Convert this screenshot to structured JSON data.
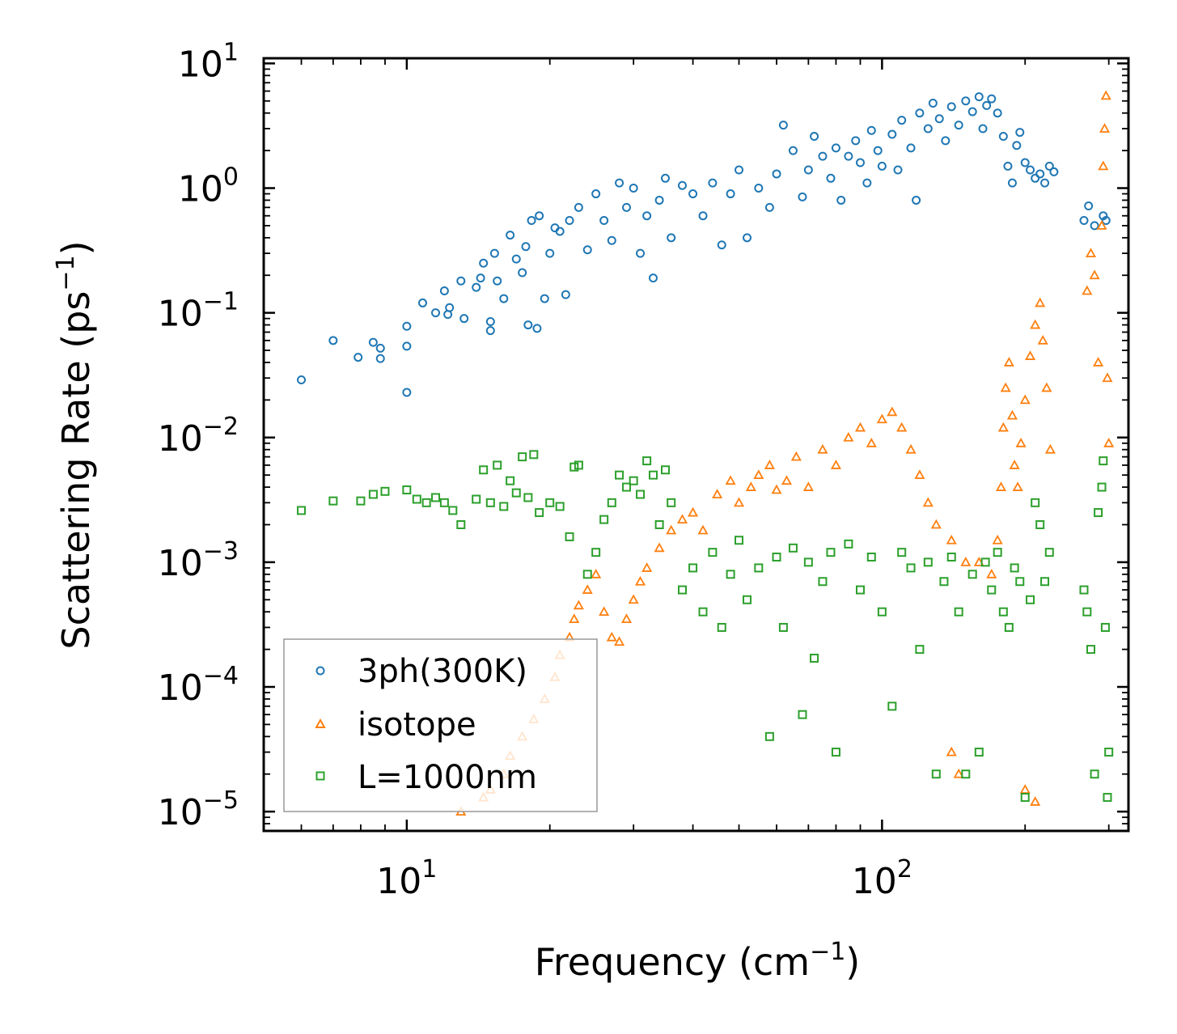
{
  "chart_data": {
    "type": "scatter",
    "xscale": "log",
    "yscale": "log",
    "xlim": [
      5,
      330
    ],
    "ylim": [
      7e-06,
      11
    ],
    "xlabel": "Frequency (cm",
    "xlabel_sup": "−1",
    "xlabel_end": ")",
    "ylabel": "Scattering Rate (ps",
    "ylabel_sup": "−1",
    "ylabel_end": ")",
    "x_ticks": [
      {
        "value": 10,
        "base": "10",
        "exp": "1"
      },
      {
        "value": 100,
        "base": "10",
        "exp": "2"
      }
    ],
    "y_ticks": [
      {
        "value": 10,
        "base": "10",
        "exp": "1"
      },
      {
        "value": 1,
        "base": "10",
        "exp": "0"
      },
      {
        "value": 0.1,
        "base": "10",
        "exp": "−1"
      },
      {
        "value": 0.01,
        "base": "10",
        "exp": "−2"
      },
      {
        "value": 0.001,
        "base": "10",
        "exp": "−3"
      },
      {
        "value": 0.0001,
        "base": "10",
        "exp": "−4"
      },
      {
        "value": 1e-05,
        "base": "10",
        "exp": "−5"
      }
    ],
    "legend": {
      "location": "lower-left"
    },
    "series": [
      {
        "name": "3ph(300K)",
        "marker": "circle",
        "color": "#1f77b4",
        "points": [
          [
            6.0,
            0.029
          ],
          [
            7.0,
            0.06
          ],
          [
            7.9,
            0.044
          ],
          [
            8.5,
            0.058
          ],
          [
            8.8,
            0.052
          ],
          [
            8.8,
            0.043
          ],
          [
            10.0,
            0.078
          ],
          [
            10.0,
            0.054
          ],
          [
            10.0,
            0.023
          ],
          [
            10.8,
            0.12
          ],
          [
            11.5,
            0.1
          ],
          [
            12.0,
            0.15
          ],
          [
            12.2,
            0.097
          ],
          [
            12.3,
            0.11
          ],
          [
            13.0,
            0.18
          ],
          [
            13.2,
            0.09
          ],
          [
            14.0,
            0.16
          ],
          [
            14.3,
            0.19
          ],
          [
            14.5,
            0.25
          ],
          [
            15.0,
            0.085
          ],
          [
            15.0,
            0.072
          ],
          [
            15.3,
            0.3
          ],
          [
            15.5,
            0.18
          ],
          [
            16.0,
            0.13
          ],
          [
            16.5,
            0.42
          ],
          [
            17.0,
            0.27
          ],
          [
            17.5,
            0.21
          ],
          [
            17.8,
            0.34
          ],
          [
            18.0,
            0.08
          ],
          [
            18.3,
            0.55
          ],
          [
            18.8,
            0.075
          ],
          [
            19.0,
            0.6
          ],
          [
            19.5,
            0.13
          ],
          [
            20.0,
            0.3
          ],
          [
            20.5,
            0.48
          ],
          [
            21.0,
            0.45
          ],
          [
            21.6,
            0.14
          ],
          [
            22.0,
            0.55
          ],
          [
            23.0,
            0.7
          ],
          [
            24.0,
            0.32
          ],
          [
            25.0,
            0.9
          ],
          [
            26.0,
            0.55
          ],
          [
            27.0,
            0.38
          ],
          [
            28.0,
            1.1
          ],
          [
            29.0,
            0.7
          ],
          [
            30.0,
            1.0
          ],
          [
            31.0,
            0.3
          ],
          [
            32.0,
            0.6
          ],
          [
            33.0,
            0.19
          ],
          [
            34.0,
            0.8
          ],
          [
            35.0,
            1.2
          ],
          [
            36.0,
            0.4
          ],
          [
            38.0,
            1.05
          ],
          [
            40.0,
            0.9
          ],
          [
            42.0,
            0.6
          ],
          [
            44.0,
            1.1
          ],
          [
            46.0,
            0.35
          ],
          [
            48.0,
            0.9
          ],
          [
            50.0,
            1.4
          ],
          [
            52.0,
            0.4
          ],
          [
            55.0,
            1.0
          ],
          [
            58.0,
            0.7
          ],
          [
            60.0,
            1.3
          ],
          [
            62.0,
            3.2
          ],
          [
            65.0,
            2.0
          ],
          [
            68.0,
            0.85
          ],
          [
            70.0,
            1.4
          ],
          [
            72.0,
            2.6
          ],
          [
            75.0,
            1.8
          ],
          [
            78.0,
            1.2
          ],
          [
            80.0,
            2.1
          ],
          [
            82.0,
            0.8
          ],
          [
            85.0,
            1.8
          ],
          [
            88.0,
            2.4
          ],
          [
            90.0,
            1.6
          ],
          [
            93.0,
            1.1
          ],
          [
            95.0,
            2.9
          ],
          [
            98.0,
            2.0
          ],
          [
            100.0,
            1.5
          ],
          [
            105.0,
            2.7
          ],
          [
            108.0,
            1.4
          ],
          [
            110.0,
            3.5
          ],
          [
            115.0,
            2.1
          ],
          [
            118.0,
            0.8
          ],
          [
            120.0,
            4.0
          ],
          [
            125.0,
            3.0
          ],
          [
            128.0,
            4.8
          ],
          [
            132.0,
            3.6
          ],
          [
            136.0,
            2.4
          ],
          [
            140.0,
            4.5
          ],
          [
            145.0,
            3.2
          ],
          [
            150.0,
            5.0
          ],
          [
            155.0,
            4.1
          ],
          [
            160.0,
            5.4
          ],
          [
            163.0,
            3.0
          ],
          [
            166.0,
            4.6
          ],
          [
            170.0,
            5.2
          ],
          [
            175.0,
            4.0
          ],
          [
            180.0,
            2.6
          ],
          [
            184.0,
            1.5
          ],
          [
            188.0,
            1.1
          ],
          [
            192.0,
            2.2
          ],
          [
            195.0,
            2.8
          ],
          [
            200.0,
            1.6
          ],
          [
            205.0,
            1.4
          ],
          [
            210.0,
            1.2
          ],
          [
            215.0,
            1.3
          ],
          [
            220.0,
            1.1
          ],
          [
            225.0,
            1.5
          ],
          [
            230.0,
            1.35
          ],
          [
            266.0,
            0.55
          ],
          [
            272.0,
            0.72
          ],
          [
            280.0,
            0.5
          ],
          [
            292.0,
            0.6
          ],
          [
            296.0,
            0.55
          ]
        ]
      },
      {
        "name": "isotope",
        "marker": "triangle",
        "color": "#ff7f0e",
        "points": [
          [
            13.0,
            1e-05
          ],
          [
            14.5,
            1.3e-05
          ],
          [
            15.0,
            1.5e-05
          ],
          [
            16.0,
            2e-05
          ],
          [
            16.5,
            2.8e-05
          ],
          [
            17.5,
            4e-05
          ],
          [
            18.5,
            5.5e-05
          ],
          [
            19.5,
            8e-05
          ],
          [
            20.5,
            0.00012
          ],
          [
            21.0,
            0.00018
          ],
          [
            22.0,
            0.00025
          ],
          [
            22.5,
            0.00035
          ],
          [
            23.0,
            0.00045
          ],
          [
            24.0,
            0.0006
          ],
          [
            25.0,
            0.0008
          ],
          [
            26.0,
            0.0004
          ],
          [
            27.0,
            0.00025
          ],
          [
            28.0,
            0.00023
          ],
          [
            29.0,
            0.00035
          ],
          [
            30.0,
            0.0005
          ],
          [
            31.0,
            0.0007
          ],
          [
            32.0,
            0.0009
          ],
          [
            34.0,
            0.0013
          ],
          [
            36.0,
            0.0018
          ],
          [
            38.0,
            0.0022
          ],
          [
            40.0,
            0.0025
          ],
          [
            42.0,
            0.0018
          ],
          [
            45.0,
            0.0035
          ],
          [
            48.0,
            0.0045
          ],
          [
            50.0,
            0.003
          ],
          [
            53.0,
            0.004
          ],
          [
            55.0,
            0.005
          ],
          [
            58.0,
            0.006
          ],
          [
            60.0,
            0.0038
          ],
          [
            63.0,
            0.0045
          ],
          [
            66.0,
            0.007
          ],
          [
            70.0,
            0.004
          ],
          [
            75.0,
            0.008
          ],
          [
            80.0,
            0.006
          ],
          [
            85.0,
            0.01
          ],
          [
            90.0,
            0.012
          ],
          [
            95.0,
            0.009
          ],
          [
            100.0,
            0.014
          ],
          [
            105.0,
            0.016
          ],
          [
            110.0,
            0.012
          ],
          [
            115.0,
            0.008
          ],
          [
            120.0,
            0.005
          ],
          [
            125.0,
            0.003
          ],
          [
            130.0,
            0.002
          ],
          [
            140.0,
            0.0015
          ],
          [
            150.0,
            0.001
          ],
          [
            160.0,
            0.001
          ],
          [
            170.0,
            0.0008
          ],
          [
            175.0,
            0.0015
          ],
          [
            178.0,
            0.004
          ],
          [
            180.0,
            0.012
          ],
          [
            182.0,
            0.025
          ],
          [
            185.0,
            0.04
          ],
          [
            188.0,
            0.015
          ],
          [
            190.0,
            0.006
          ],
          [
            193.0,
            0.004
          ],
          [
            196.0,
            0.009
          ],
          [
            200.0,
            0.02
          ],
          [
            205.0,
            0.045
          ],
          [
            210.0,
            0.08
          ],
          [
            215.0,
            0.12
          ],
          [
            218.0,
            0.06
          ],
          [
            222.0,
            0.025
          ],
          [
            226.0,
            0.008
          ],
          [
            270.0,
            0.15
          ],
          [
            275.0,
            0.3
          ],
          [
            280.0,
            0.2
          ],
          [
            285.0,
            0.04
          ],
          [
            290.0,
            0.5
          ],
          [
            292.0,
            1.5
          ],
          [
            294.0,
            3.0
          ],
          [
            296.0,
            5.5
          ],
          [
            298.0,
            0.03
          ],
          [
            300.0,
            0.009
          ],
          [
            140.0,
            3e-05
          ],
          [
            145.0,
            2e-05
          ],
          [
            200.0,
            1.5e-05
          ],
          [
            210.0,
            1.2e-05
          ]
        ]
      },
      {
        "name": "L=1000nm",
        "marker": "square",
        "color": "#2ca02c",
        "points": [
          [
            6.0,
            0.0026
          ],
          [
            7.0,
            0.0031
          ],
          [
            8.0,
            0.0031
          ],
          [
            8.5,
            0.0035
          ],
          [
            9.0,
            0.0037
          ],
          [
            10.0,
            0.0038
          ],
          [
            10.5,
            0.0032
          ],
          [
            11.0,
            0.003
          ],
          [
            11.5,
            0.0033
          ],
          [
            12.0,
            0.003
          ],
          [
            12.5,
            0.0026
          ],
          [
            13.0,
            0.002
          ],
          [
            14.0,
            0.0032
          ],
          [
            14.5,
            0.0055
          ],
          [
            15.0,
            0.003
          ],
          [
            15.5,
            0.006
          ],
          [
            16.0,
            0.0028
          ],
          [
            16.5,
            0.0045
          ],
          [
            17.0,
            0.0036
          ],
          [
            17.5,
            0.007
          ],
          [
            18.0,
            0.0033
          ],
          [
            18.5,
            0.0073
          ],
          [
            19.0,
            0.0025
          ],
          [
            20.0,
            0.003
          ],
          [
            21.0,
            0.0028
          ],
          [
            22.0,
            0.0016
          ],
          [
            22.5,
            0.0058
          ],
          [
            23.0,
            0.006
          ],
          [
            24.0,
            0.0008
          ],
          [
            25.0,
            0.0012
          ],
          [
            26.0,
            0.0022
          ],
          [
            27.0,
            0.003
          ],
          [
            28.0,
            0.005
          ],
          [
            29.0,
            0.004
          ],
          [
            30.0,
            0.0045
          ],
          [
            31.0,
            0.0035
          ],
          [
            32.0,
            0.0065
          ],
          [
            33.0,
            0.005
          ],
          [
            34.0,
            0.002
          ],
          [
            35.0,
            0.0055
          ],
          [
            36.0,
            0.003
          ],
          [
            38.0,
            0.0006
          ],
          [
            40.0,
            0.0009
          ],
          [
            42.0,
            0.0004
          ],
          [
            44.0,
            0.0012
          ],
          [
            46.0,
            0.0003
          ],
          [
            48.0,
            0.0008
          ],
          [
            50.0,
            0.0015
          ],
          [
            52.0,
            0.0005
          ],
          [
            55.0,
            0.0009
          ],
          [
            58.0,
            4e-05
          ],
          [
            60.0,
            0.0011
          ],
          [
            62.0,
            0.0003
          ],
          [
            65.0,
            0.0013
          ],
          [
            68.0,
            6e-05
          ],
          [
            70.0,
            0.001
          ],
          [
            72.0,
            0.00017
          ],
          [
            75.0,
            0.0007
          ],
          [
            78.0,
            0.0012
          ],
          [
            80.0,
            3e-05
          ],
          [
            85.0,
            0.0014
          ],
          [
            90.0,
            0.0006
          ],
          [
            95.0,
            0.0011
          ],
          [
            100.0,
            0.0004
          ],
          [
            105.0,
            7e-05
          ],
          [
            110.0,
            0.0012
          ],
          [
            115.0,
            0.0009
          ],
          [
            120.0,
            0.0002
          ],
          [
            125.0,
            0.001
          ],
          [
            130.0,
            2e-05
          ],
          [
            135.0,
            0.0007
          ],
          [
            140.0,
            0.0011
          ],
          [
            145.0,
            0.0004
          ],
          [
            150.0,
            2e-05
          ],
          [
            155.0,
            0.0008
          ],
          [
            160.0,
            3e-05
          ],
          [
            165.0,
            0.001
          ],
          [
            170.0,
            0.0006
          ],
          [
            175.0,
            0.0012
          ],
          [
            180.0,
            0.0004
          ],
          [
            185.0,
            0.0003
          ],
          [
            190.0,
            0.0009
          ],
          [
            195.0,
            0.0007
          ],
          [
            200.0,
            1.3e-05
          ],
          [
            205.0,
            0.0005
          ],
          [
            210.0,
            0.003
          ],
          [
            215.0,
            0.002
          ],
          [
            220.0,
            0.0007
          ],
          [
            225.0,
            0.0012
          ],
          [
            266.0,
            0.0006
          ],
          [
            270.0,
            0.0004
          ],
          [
            275.0,
            0.0002
          ],
          [
            280.0,
            2e-05
          ],
          [
            285.0,
            0.0025
          ],
          [
            290.0,
            0.004
          ],
          [
            292.0,
            0.0065
          ],
          [
            295.0,
            0.0003
          ],
          [
            298.0,
            1.3e-05
          ],
          [
            300.0,
            3e-05
          ]
        ]
      }
    ]
  }
}
